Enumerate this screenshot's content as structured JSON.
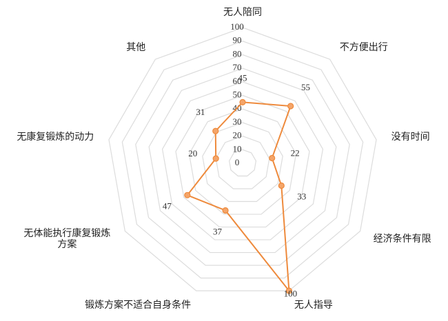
{
  "chart_data": {
    "type": "radar",
    "categories": [
      "无人陪同",
      "不方便出行",
      "没有时间",
      "经济条件有限",
      "无人指导",
      "锻炼方案不适合自身条件",
      "无体能执行康复锻炼方案",
      "无康复锻炼的动力",
      "其他"
    ],
    "series": [
      {
        "color": "#ee8a3c",
        "values": [
          45,
          55,
          22,
          33,
          100,
          37,
          47,
          20,
          31
        ]
      }
    ],
    "rlim": [
      0,
      100
    ],
    "rticks": [
      0,
      10,
      20,
      30,
      40,
      50,
      60,
      70,
      80,
      90,
      100
    ],
    "grid": true
  }
}
